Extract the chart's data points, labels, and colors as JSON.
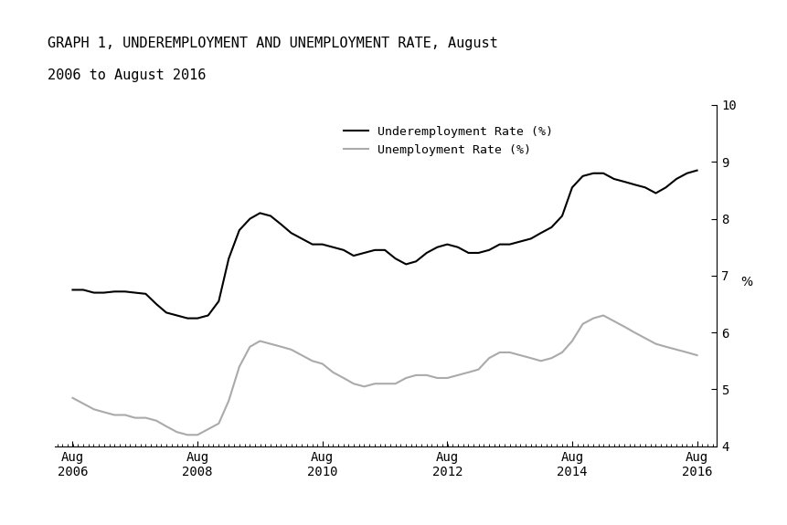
{
  "title_line1": "GRAPH 1, UNDEREMPLOYMENT AND UNEMPLOYMENT RATE, August",
  "title_line2": "2006 to August 2016",
  "underemployment": {
    "label": "Underemployment Rate (%)",
    "color": "#000000",
    "dates": [
      2006.58,
      2006.75,
      2006.92,
      2007.08,
      2007.25,
      2007.42,
      2007.58,
      2007.75,
      2007.92,
      2008.08,
      2008.25,
      2008.42,
      2008.58,
      2008.75,
      2008.92,
      2009.08,
      2009.25,
      2009.42,
      2009.58,
      2009.75,
      2009.92,
      2010.08,
      2010.25,
      2010.42,
      2010.58,
      2010.75,
      2010.92,
      2011.08,
      2011.25,
      2011.42,
      2011.58,
      2011.75,
      2011.92,
      2012.08,
      2012.25,
      2012.42,
      2012.58,
      2012.75,
      2012.92,
      2013.08,
      2013.25,
      2013.42,
      2013.58,
      2013.75,
      2013.92,
      2014.08,
      2014.25,
      2014.42,
      2014.58,
      2014.75,
      2014.92,
      2015.08,
      2015.25,
      2015.42,
      2015.58,
      2015.75,
      2015.92,
      2016.08,
      2016.25,
      2016.42,
      2016.58
    ],
    "values": [
      6.75,
      6.75,
      6.7,
      6.7,
      6.72,
      6.72,
      6.7,
      6.68,
      6.5,
      6.35,
      6.3,
      6.25,
      6.25,
      6.3,
      6.55,
      7.3,
      7.8,
      8.0,
      8.1,
      8.05,
      7.9,
      7.75,
      7.65,
      7.55,
      7.55,
      7.5,
      7.45,
      7.35,
      7.4,
      7.45,
      7.45,
      7.3,
      7.2,
      7.25,
      7.4,
      7.5,
      7.55,
      7.5,
      7.4,
      7.4,
      7.45,
      7.55,
      7.55,
      7.6,
      7.65,
      7.75,
      7.85,
      8.05,
      8.55,
      8.75,
      8.8,
      8.8,
      8.7,
      8.65,
      8.6,
      8.55,
      8.45,
      8.55,
      8.7,
      8.8,
      8.85
    ]
  },
  "unemployment": {
    "label": "Unemployment Rate (%)",
    "color": "#aaaaaa",
    "dates": [
      2006.58,
      2006.75,
      2006.92,
      2007.08,
      2007.25,
      2007.42,
      2007.58,
      2007.75,
      2007.92,
      2008.08,
      2008.25,
      2008.42,
      2008.58,
      2008.75,
      2008.92,
      2009.08,
      2009.25,
      2009.42,
      2009.58,
      2009.75,
      2009.92,
      2010.08,
      2010.25,
      2010.42,
      2010.58,
      2010.75,
      2010.92,
      2011.08,
      2011.25,
      2011.42,
      2011.58,
      2011.75,
      2011.92,
      2012.08,
      2012.25,
      2012.42,
      2012.58,
      2012.75,
      2012.92,
      2013.08,
      2013.25,
      2013.42,
      2013.58,
      2013.75,
      2013.92,
      2014.08,
      2014.25,
      2014.42,
      2014.58,
      2014.75,
      2014.92,
      2015.08,
      2015.25,
      2015.42,
      2015.58,
      2015.75,
      2015.92,
      2016.08,
      2016.25,
      2016.42,
      2016.58
    ],
    "values": [
      4.85,
      4.75,
      4.65,
      4.6,
      4.55,
      4.55,
      4.5,
      4.5,
      4.45,
      4.35,
      4.25,
      4.2,
      4.2,
      4.3,
      4.4,
      4.8,
      5.4,
      5.75,
      5.85,
      5.8,
      5.75,
      5.7,
      5.6,
      5.5,
      5.45,
      5.3,
      5.2,
      5.1,
      5.05,
      5.1,
      5.1,
      5.1,
      5.2,
      5.25,
      5.25,
      5.2,
      5.2,
      5.25,
      5.3,
      5.35,
      5.55,
      5.65,
      5.65,
      5.6,
      5.55,
      5.5,
      5.55,
      5.65,
      5.85,
      6.15,
      6.25,
      6.3,
      6.2,
      6.1,
      6.0,
      5.9,
      5.8,
      5.75,
      5.7,
      5.65,
      5.6
    ]
  },
  "ylim": [
    4.0,
    10.0
  ],
  "yticks": [
    4,
    5,
    6,
    7,
    8,
    9,
    10
  ],
  "xticks": [
    2006.58,
    2008.58,
    2010.58,
    2012.58,
    2014.58,
    2016.58
  ],
  "xticklabels": [
    "Aug\n2006",
    "Aug\n2008",
    "Aug\n2010",
    "Aug\n2012",
    "Aug\n2014",
    "Aug\n2016"
  ],
  "ylabel": "%",
  "background_color": "#ffffff",
  "font_family": "monospace"
}
